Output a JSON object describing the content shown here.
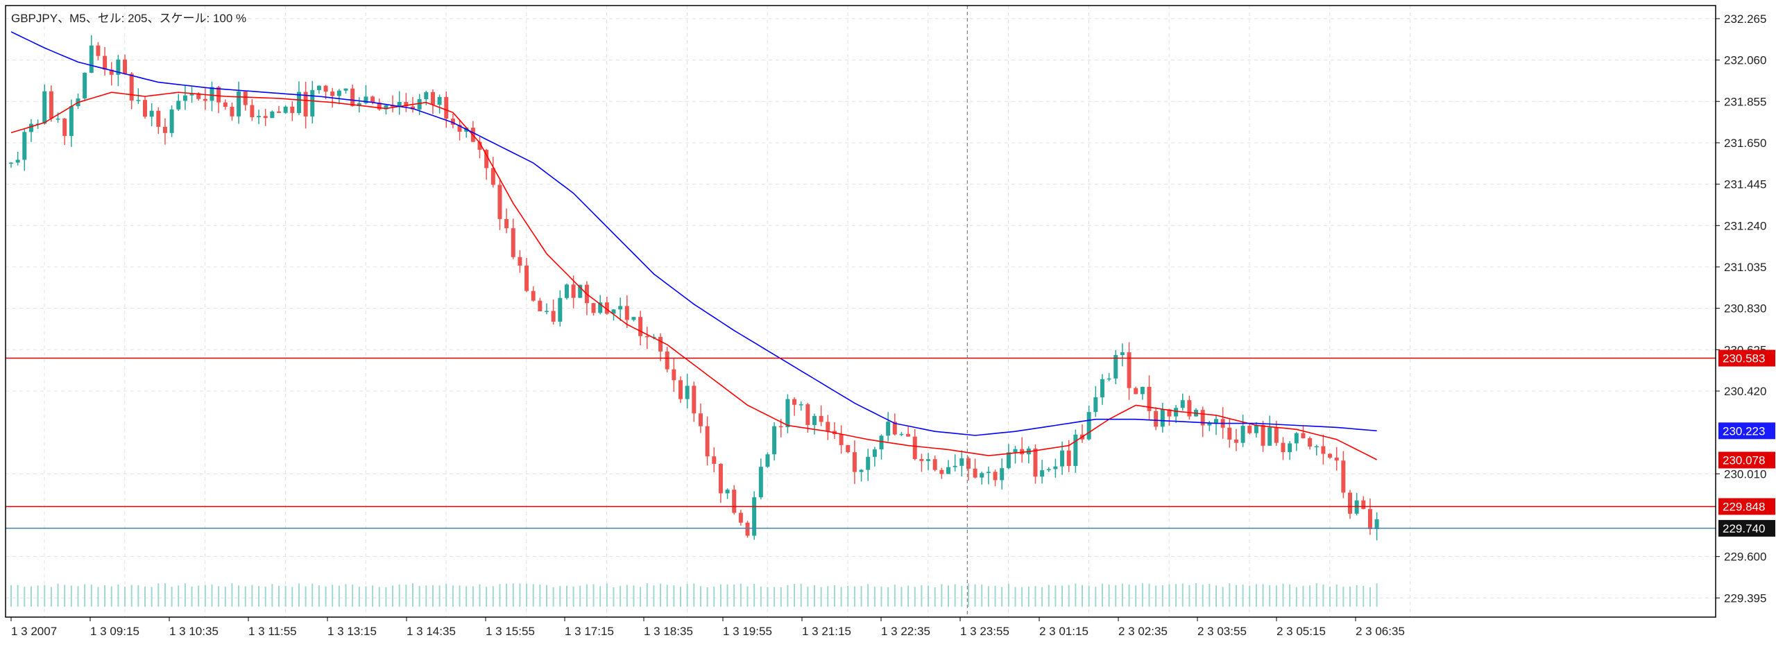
{
  "header": {
    "title": "GBPJPY、M5、セル: 205、スケール: 100 %"
  },
  "chart_data": {
    "type": "line",
    "title": "GBPJPY、M5、セル: 205、スケール: 100 %",
    "ylim": [
      229.3,
      232.33
    ],
    "grid": true,
    "y_ticks": [
      "232.265",
      "232.060",
      "231.855",
      "231.650",
      "231.445",
      "231.240",
      "231.035",
      "230.830",
      "230.625",
      "230.420",
      "230.010",
      "229.600",
      "229.395"
    ],
    "x_ticks": [
      "1 3 2007",
      "1 3 09:15",
      "1 3 10:35",
      "1 3 11:55",
      "1 3 13:15",
      "1 3 14:35",
      "1 3 15:55",
      "1 3 17:15",
      "1 3 18:35",
      "1 3 19:55",
      "1 3 21:15",
      "1 3 22:35",
      "1 3 23:55",
      "2 3 01:15",
      "2 3 02:35",
      "2 3 03:55",
      "2 3 05:15",
      "2 3 06:35"
    ],
    "candles": {
      "count": 205,
      "anchors": [
        [
          0,
          231.55
        ],
        [
          5,
          231.85
        ],
        [
          8,
          231.75
        ],
        [
          12,
          232.1
        ],
        [
          16,
          232.0
        ],
        [
          22,
          231.7
        ],
        [
          26,
          231.9
        ],
        [
          32,
          231.85
        ],
        [
          40,
          231.8
        ],
        [
          48,
          231.9
        ],
        [
          58,
          231.85
        ],
        [
          64,
          231.85
        ],
        [
          68,
          231.75
        ],
        [
          72,
          231.4
        ],
        [
          76,
          231.0
        ],
        [
          80,
          230.75
        ],
        [
          84,
          230.95
        ],
        [
          88,
          230.85
        ],
        [
          92,
          230.8
        ],
        [
          98,
          230.55
        ],
        [
          102,
          230.35
        ],
        [
          106,
          229.9
        ],
        [
          110,
          229.75
        ],
        [
          112,
          230.1
        ],
        [
          115,
          230.3
        ],
        [
          118,
          230.35
        ],
        [
          122,
          230.2
        ],
        [
          126,
          230.0
        ],
        [
          130,
          230.25
        ],
        [
          134,
          230.15
        ],
        [
          138,
          230.05
        ],
        [
          142,
          230.1
        ],
        [
          146,
          230.0
        ],
        [
          150,
          230.1
        ],
        [
          154,
          230.05
        ],
        [
          158,
          230.1
        ],
        [
          162,
          230.35
        ],
        [
          165,
          230.6
        ],
        [
          168,
          230.45
        ],
        [
          171,
          230.3
        ],
        [
          175,
          230.35
        ],
        [
          180,
          230.25
        ],
        [
          186,
          230.2
        ],
        [
          192,
          230.15
        ],
        [
          197,
          230.1
        ],
        [
          200,
          229.85
        ],
        [
          202,
          229.8
        ],
        [
          204,
          229.74
        ]
      ]
    },
    "series": [
      {
        "name": "",
        "color": "#ff0000",
        "points": [
          [
            0,
            231.7
          ],
          [
            5,
            231.75
          ],
          [
            10,
            231.85
          ],
          [
            15,
            231.9
          ],
          [
            20,
            231.88
          ],
          [
            25,
            231.9
          ],
          [
            32,
            231.88
          ],
          [
            40,
            231.87
          ],
          [
            48,
            231.85
          ],
          [
            56,
            231.82
          ],
          [
            62,
            231.85
          ],
          [
            66,
            231.8
          ],
          [
            70,
            231.65
          ],
          [
            75,
            231.35
          ],
          [
            80,
            231.1
          ],
          [
            86,
            230.9
          ],
          [
            92,
            230.75
          ],
          [
            98,
            230.65
          ],
          [
            104,
            230.5
          ],
          [
            110,
            230.35
          ],
          [
            116,
            230.25
          ],
          [
            122,
            230.22
          ],
          [
            128,
            230.18
          ],
          [
            134,
            230.15
          ],
          [
            140,
            230.13
          ],
          [
            146,
            230.1
          ],
          [
            152,
            230.12
          ],
          [
            158,
            230.15
          ],
          [
            164,
            230.28
          ],
          [
            168,
            230.35
          ],
          [
            174,
            230.32
          ],
          [
            180,
            230.3
          ],
          [
            186,
            230.25
          ],
          [
            192,
            230.23
          ],
          [
            198,
            230.18
          ],
          [
            204,
            230.08
          ]
        ]
      },
      {
        "name": "",
        "color": "#0000ff",
        "points": [
          [
            0,
            232.2
          ],
          [
            5,
            232.12
          ],
          [
            10,
            232.05
          ],
          [
            16,
            232.0
          ],
          [
            22,
            231.95
          ],
          [
            30,
            231.92
          ],
          [
            38,
            231.9
          ],
          [
            46,
            231.88
          ],
          [
            54,
            231.85
          ],
          [
            60,
            231.82
          ],
          [
            66,
            231.75
          ],
          [
            72,
            231.65
          ],
          [
            78,
            231.55
          ],
          [
            84,
            231.4
          ],
          [
            90,
            231.2
          ],
          [
            96,
            231.0
          ],
          [
            102,
            230.85
          ],
          [
            108,
            230.72
          ],
          [
            114,
            230.6
          ],
          [
            120,
            230.48
          ],
          [
            126,
            230.36
          ],
          [
            132,
            230.26
          ],
          [
            138,
            230.22
          ],
          [
            144,
            230.2
          ],
          [
            150,
            230.22
          ],
          [
            156,
            230.25
          ],
          [
            162,
            230.28
          ],
          [
            168,
            230.28
          ],
          [
            174,
            230.27
          ],
          [
            180,
            230.26
          ],
          [
            186,
            230.26
          ],
          [
            192,
            230.25
          ],
          [
            198,
            230.24
          ],
          [
            204,
            230.223
          ]
        ]
      }
    ],
    "hlines": [
      {
        "value": 230.583,
        "color": "#e00000",
        "label": "230.583"
      },
      {
        "value": 229.848,
        "color": "#e00000",
        "label": "229.848"
      },
      {
        "value": 229.74,
        "color": "#4682b4",
        "label": "229.740"
      }
    ],
    "price_tags": [
      {
        "value": 230.223,
        "color": "#1a1aff",
        "label": "230.223"
      },
      {
        "value": 230.078,
        "color": "#e00000",
        "label": "230.078"
      }
    ],
    "crosshair_index": 142
  },
  "colors": {
    "bull": "#26a69a",
    "bear": "#ef5350",
    "grid": "#e0e0e0",
    "frame": "#000000",
    "volume": "#9fd8d0"
  }
}
